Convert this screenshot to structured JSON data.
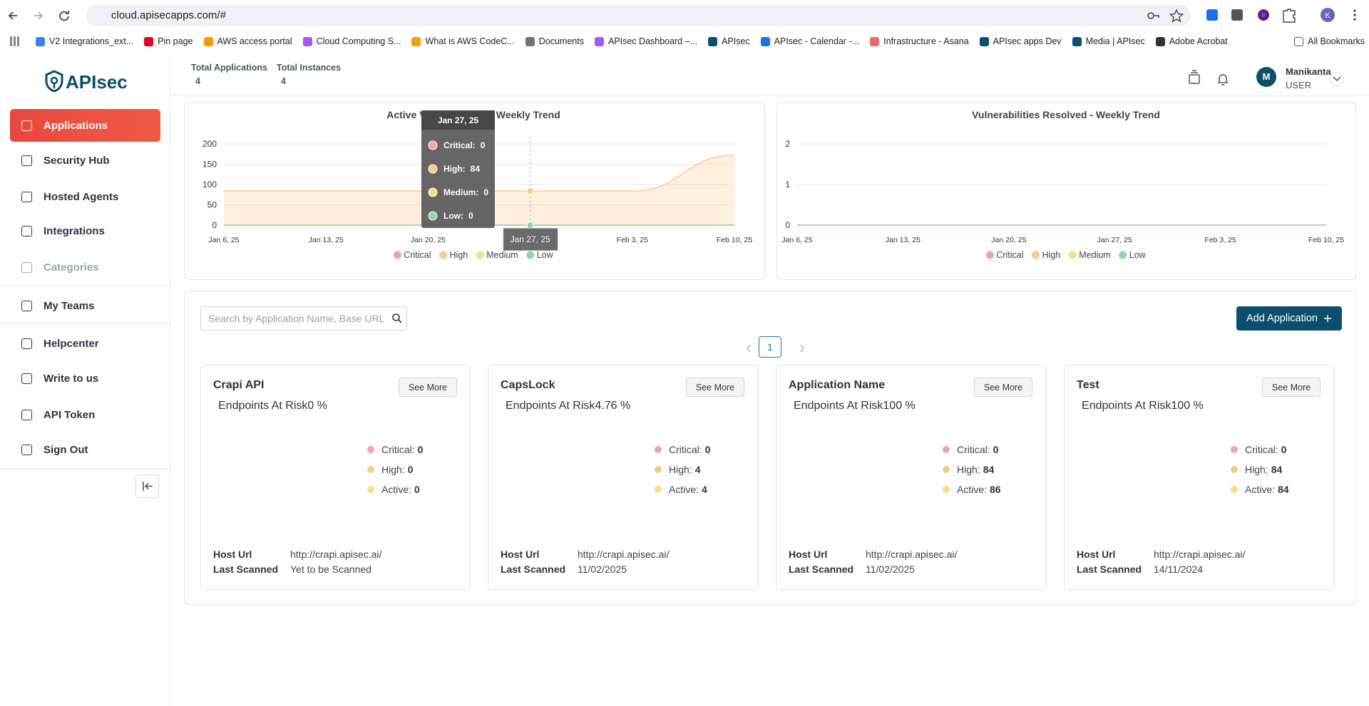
{
  "browser": {
    "url": "cloud.apisecapps.com/#",
    "bookmarks": [
      "V2 Integrations_ext...",
      "Pin page",
      "AWS access portal",
      "Cloud Computing S...",
      "What is AWS CodeC...",
      "Documents",
      "APIsec Dashboard –...",
      "APIsec",
      "APIsec - Calendar -...",
      "Infrastructure - Asana",
      "APIsec apps Dev",
      "Media | APIsec",
      "Adobe Acrobat"
    ],
    "all_bookmarks": "All Bookmarks"
  },
  "sidebar": {
    "logo": "APIsec",
    "nav": [
      {
        "label": "Applications",
        "active": true
      },
      {
        "label": "Security Hub"
      },
      {
        "label": "Hosted Agents"
      },
      {
        "label": "Integrations"
      },
      {
        "label": "Categories",
        "disabled": true
      },
      {
        "label": "My Teams"
      },
      {
        "label": "Helpcenter"
      },
      {
        "label": "Write to us"
      },
      {
        "label": "API Token"
      },
      {
        "label": "Sign Out"
      }
    ]
  },
  "header": {
    "stats": [
      {
        "label": "Total Applications",
        "value": 4
      },
      {
        "label": "Total Instances",
        "value": 4
      }
    ],
    "user": {
      "initial": "M",
      "name": "Manikanta",
      "role": "USER"
    }
  },
  "chart_data": [
    {
      "type": "area",
      "title": "Active Vulnerabilities - Weekly Trend",
      "categories": [
        "Jan 6, 25",
        "Jan 13, 25",
        "Jan 20, 25",
        "Jan 27, 25",
        "Feb 3, 25",
        "Feb 10, 25"
      ],
      "series": [
        {
          "name": "Critical",
          "color": "#f4a3a6",
          "values": [
            0,
            0,
            0,
            0,
            0,
            0
          ]
        },
        {
          "name": "High",
          "color": "#f7c98b",
          "values": [
            84,
            84,
            84,
            84,
            84,
            172
          ]
        },
        {
          "name": "Medium",
          "color": "#f5e27f",
          "values": [
            0,
            0,
            0,
            0,
            0,
            0
          ]
        },
        {
          "name": "Low",
          "color": "#8fd8a6",
          "values": [
            0,
            0,
            0,
            0,
            0,
            0
          ]
        }
      ],
      "ylim": [
        0,
        200
      ],
      "yticks": [
        0,
        50,
        100,
        150,
        200
      ],
      "grid": true,
      "tooltip": {
        "title": "Jan 27, 25",
        "labels": [
          "Critical:",
          "High:",
          "Medium:",
          "Low:"
        ]
      }
    },
    {
      "type": "area",
      "title": "Vulnerabilities Resolved - Weekly Trend",
      "categories": [
        "Jan 6, 25",
        "Jan 13, 25",
        "Jan 20, 25",
        "Jan 27, 25",
        "Feb 3, 25",
        "Feb 10, 25"
      ],
      "series": [
        {
          "name": "Critical",
          "color": "#f4a3a6",
          "values": [
            0,
            0,
            0,
            0,
            0,
            0
          ]
        },
        {
          "name": "High",
          "color": "#f7c98b",
          "values": [
            0,
            0,
            0,
            0,
            0,
            0
          ]
        },
        {
          "name": "Medium",
          "color": "#f5e27f",
          "values": [
            0,
            0,
            0,
            0,
            0,
            0
          ]
        },
        {
          "name": "Low",
          "color": "#8fd8a6",
          "values": [
            0,
            0,
            0,
            0,
            0,
            0
          ]
        }
      ],
      "ylim": [
        0,
        2
      ],
      "yticks": [
        0,
        1,
        2
      ],
      "grid": true
    }
  ],
  "applications": {
    "search_placeholder": "Search by Application Name, Base URL",
    "add_button": "Add Application",
    "page": 1,
    "donut_label": "Endpoints At Risk",
    "metric_labels": [
      "Critical:",
      "High:",
      "Active:"
    ],
    "field_labels": [
      "Host Url",
      "Last Scanned"
    ],
    "see_more": "See More",
    "colors": {
      "safe": "#9eabbd",
      "risk": "#f0636a"
    },
    "cards": [
      {
        "name": "Crapi API",
        "risk": 0,
        "risk_label": "0 %",
        "critical": 0,
        "high": 0,
        "active": 0,
        "host_url": "http://crapi.apisec.ai/",
        "last_scanned": "Yet to be Scanned"
      },
      {
        "name": "CapsLock",
        "risk": 4.76,
        "risk_label": "4.76 %",
        "critical": 0,
        "high": 4,
        "active": 4,
        "host_url": "http://crapi.apisec.ai/",
        "last_scanned": "11/02/2025"
      },
      {
        "name": "Application Name",
        "risk": 100,
        "risk_label": "100 %",
        "critical": 0,
        "high": 84,
        "active": 86,
        "host_url": "http://crapi.apisec.ai/",
        "last_scanned": "11/02/2025"
      },
      {
        "name": "Test",
        "risk": 100,
        "risk_label": "100 %",
        "critical": 0,
        "high": 84,
        "active": 84,
        "host_url": "http://crapi.apisec.ai/",
        "last_scanned": "14/11/2024"
      }
    ]
  }
}
